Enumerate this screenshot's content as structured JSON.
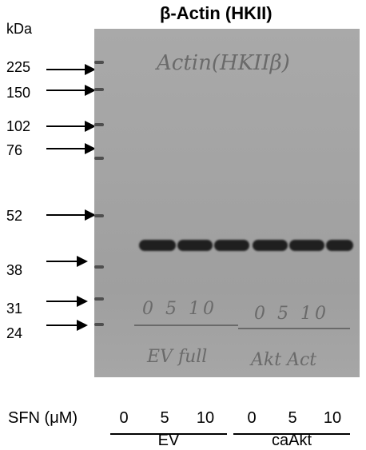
{
  "title": "β-Actin (HKII)",
  "kda_label": "kDa",
  "markers": [
    "225",
    "150",
    "102",
    "76",
    "52",
    "38",
    "31",
    "24"
  ],
  "blot_handwriting": {
    "top": "Actin(HKIIβ)",
    "lane_numbers_left": "0 5 10",
    "lane_numbers_right": "0 5 10",
    "group_left": "EV full",
    "group_right": "Akt Act"
  },
  "sfn_label": "SFN (μM)",
  "concentrations": [
    "0",
    "5",
    "10",
    "0",
    "5",
    "10"
  ],
  "groups": [
    "EV",
    "caAkt"
  ]
}
